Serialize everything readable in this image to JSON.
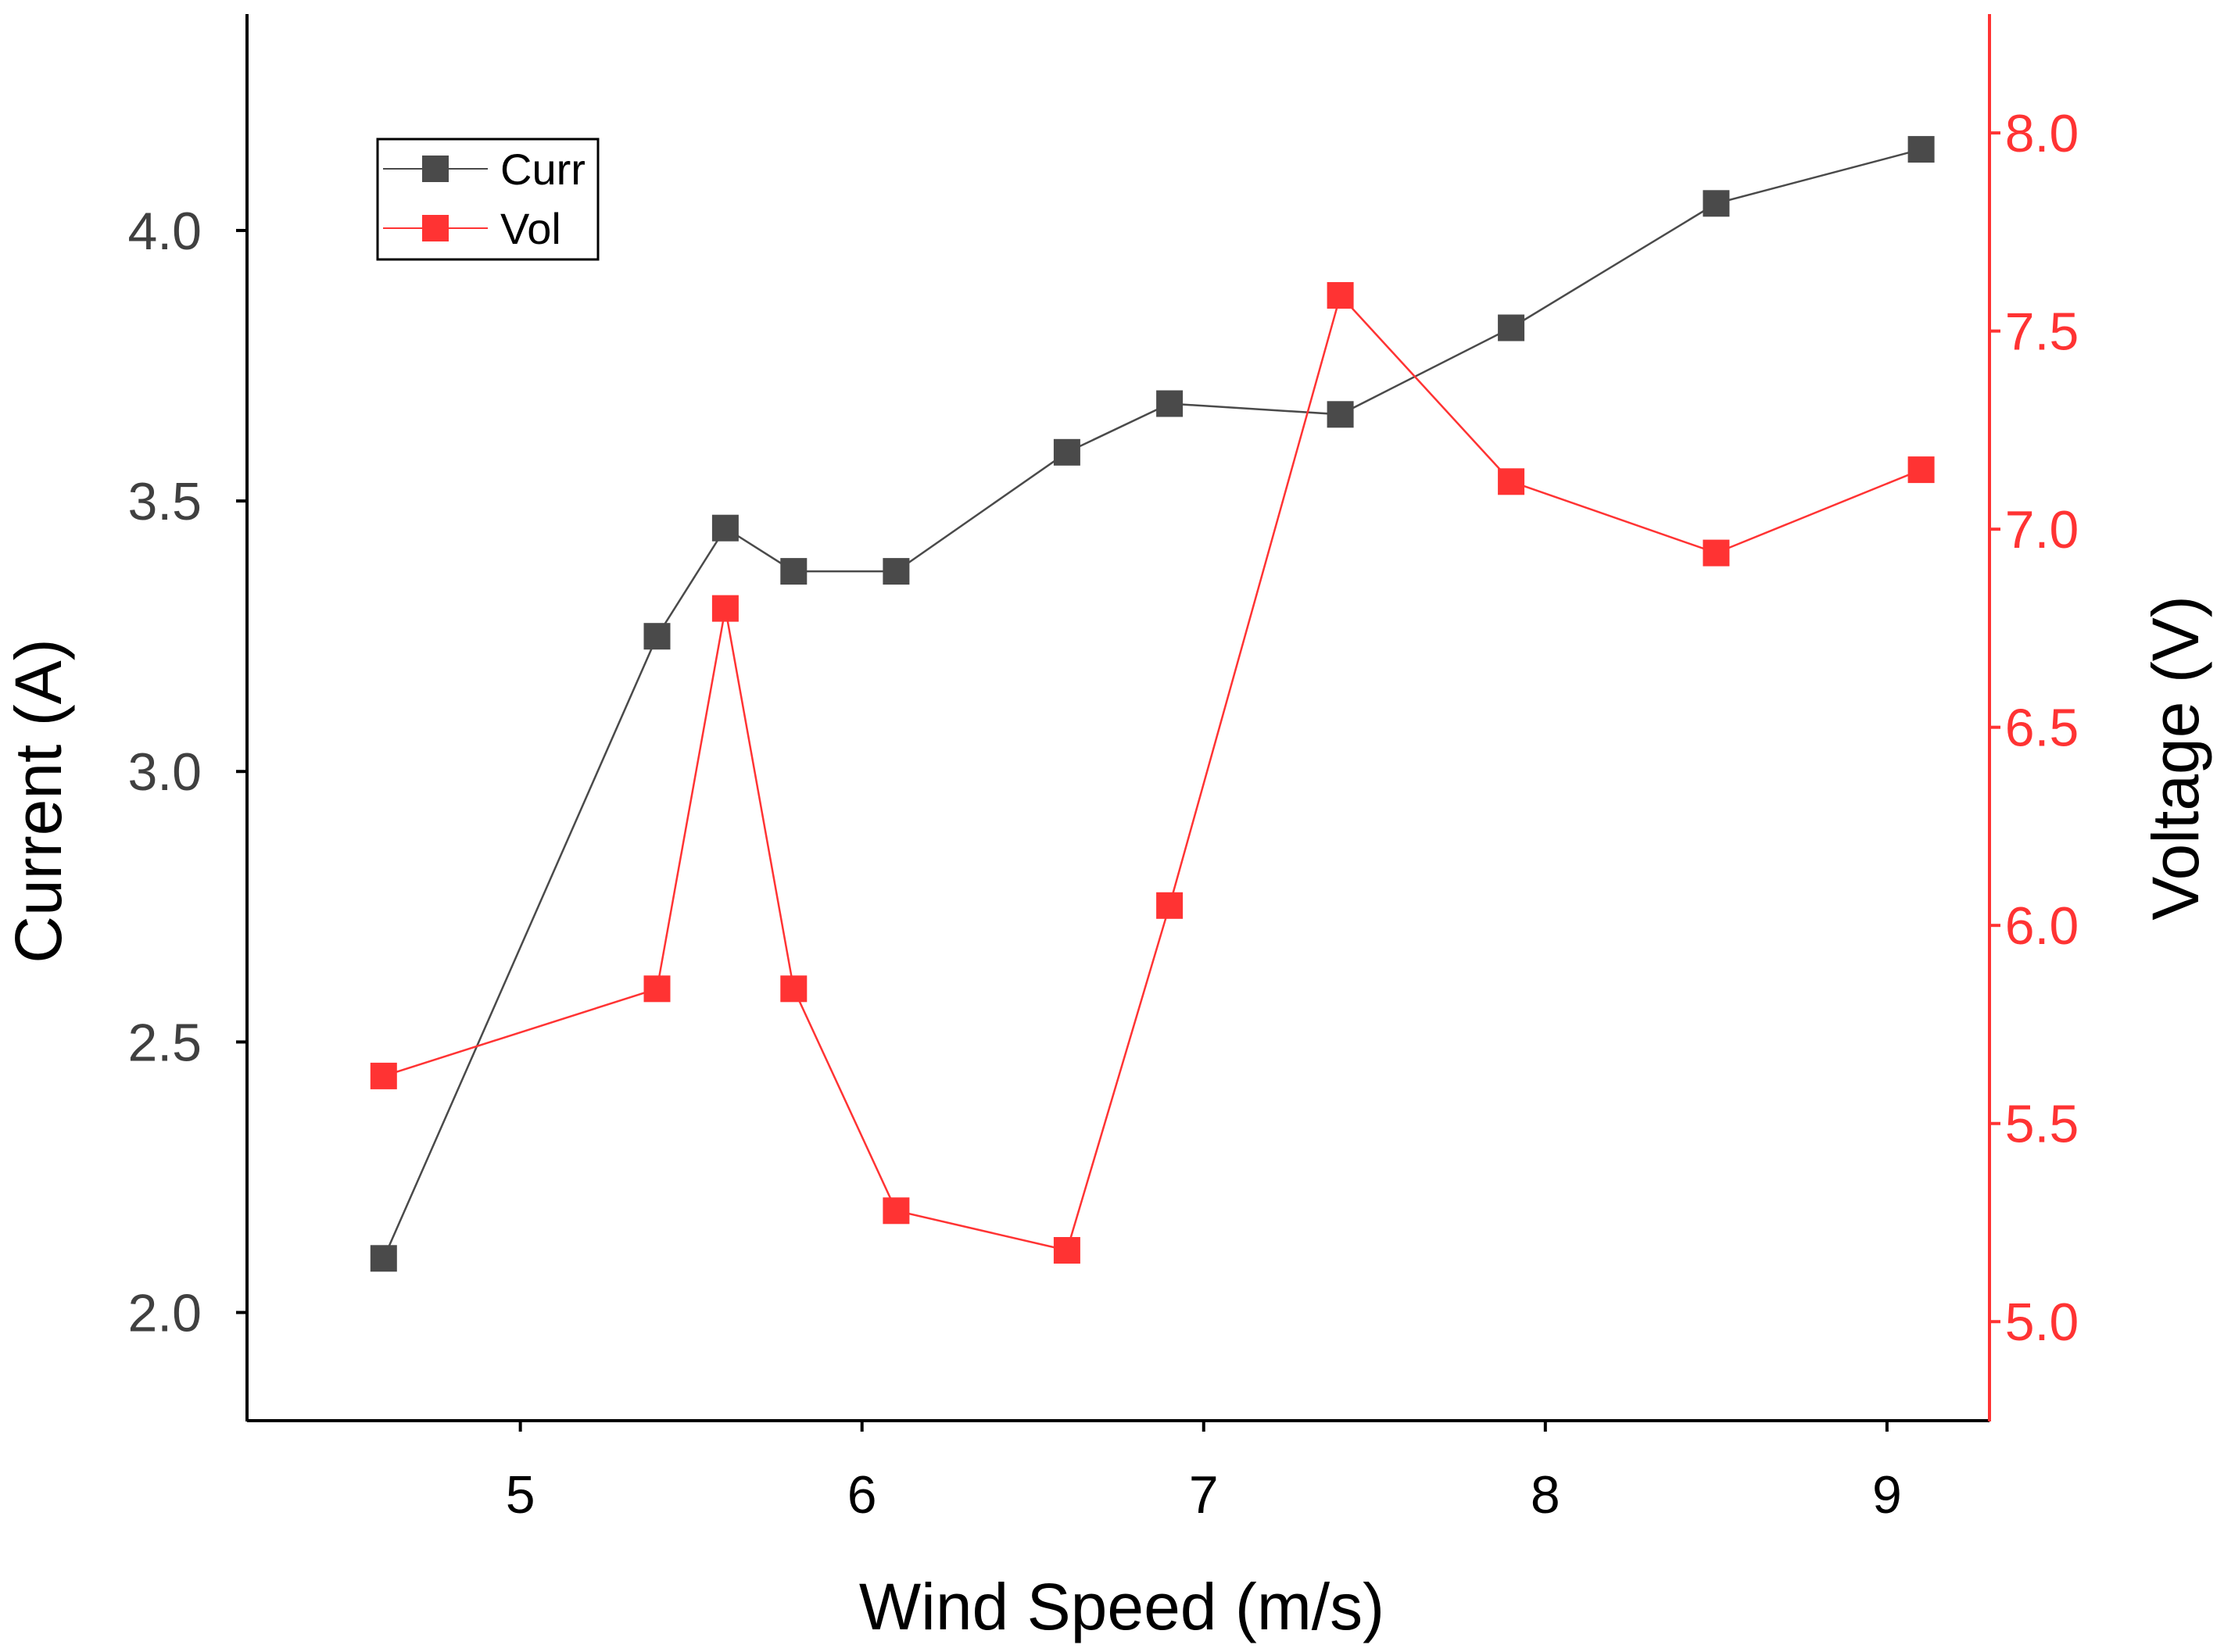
{
  "chart_data": {
    "type": "line",
    "title": "",
    "xlabel": "Wind Speed (m/s)",
    "ylabel": "Current (A)",
    "y2label": "Voltage (V)",
    "xlim": [
      4.2,
      9.3
    ],
    "ylim": [
      1.8,
      4.4
    ],
    "y2lim": [
      4.75,
      8.3
    ],
    "xticks": [
      "5",
      "6",
      "7",
      "8",
      "9"
    ],
    "yticks": [
      "2.0",
      "2.5",
      "3.0",
      "3.5",
      "4.0"
    ],
    "y2ticks": [
      "5.0",
      "5.5",
      "6.0",
      "6.5",
      "7.0",
      "7.5",
      "8.0"
    ],
    "legend_position": "top-left",
    "series": [
      {
        "name": "Curr",
        "axis": "left",
        "color": "#4a4a4a",
        "x": [
          4.6,
          5.4,
          5.6,
          5.8,
          6.1,
          6.6,
          6.9,
          7.4,
          7.9,
          8.5,
          9.1
        ],
        "values": [
          2.1,
          3.25,
          3.45,
          3.37,
          3.37,
          3.59,
          3.68,
          3.66,
          3.82,
          4.05,
          4.15
        ]
      },
      {
        "name": "Vol",
        "axis": "right",
        "color": "#ff3333",
        "x": [
          4.6,
          5.4,
          5.6,
          5.8,
          6.1,
          6.6,
          6.9,
          7.4,
          7.9,
          8.5,
          9.1
        ],
        "values": [
          5.62,
          5.84,
          6.8,
          5.84,
          5.28,
          5.18,
          6.05,
          7.59,
          7.12,
          6.94,
          7.15
        ]
      }
    ]
  },
  "colors": {
    "axis": "#000000",
    "left_tick_text": "#404040",
    "right_axis": "#ff3333"
  }
}
